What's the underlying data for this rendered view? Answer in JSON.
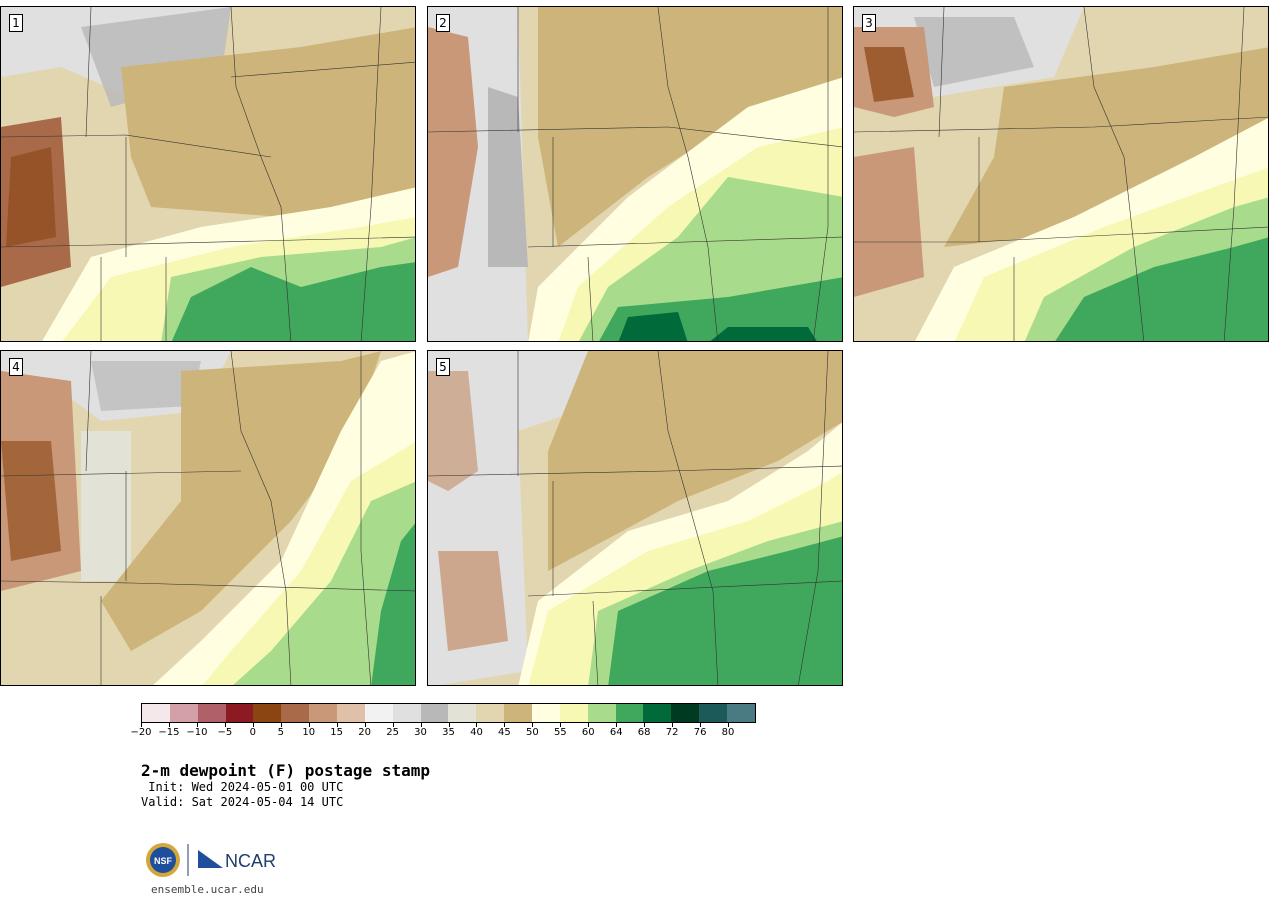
{
  "panels": [
    {
      "label": "1"
    },
    {
      "label": "2"
    },
    {
      "label": "3"
    },
    {
      "label": "4"
    },
    {
      "label": "5"
    }
  ],
  "colorbar": {
    "colors": [
      "#f4e8ea",
      "#d4a0a8",
      "#b06068",
      "#8b1a22",
      "#8b4513",
      "#a86a48",
      "#c89878",
      "#e0c0a8",
      "#f2f2f2",
      "#e0e0e0",
      "#b8b8b8",
      "#e2e2d6",
      "#e2d6b0",
      "#cdb47a",
      "#fffee0",
      "#f6f8b4",
      "#a8dc8c",
      "#40a85c",
      "#006a3a",
      "#003a20",
      "#1c5a5a",
      "#4a7a82"
    ],
    "tick_labels": [
      "−20",
      "−15",
      "−10",
      "−5",
      "0",
      "5",
      "10",
      "15",
      "20",
      "25",
      "30",
      "35",
      "40",
      "45",
      "50",
      "55",
      "60",
      "64",
      "68",
      "72",
      "76",
      "80"
    ]
  },
  "title": "2-m dewpoint (F) postage stamp",
  "init": " Init: Wed 2024-05-01 00 UTC",
  "valid": "Valid: Sat 2024-05-04 14 UTC",
  "logos": {
    "nsf": "NSF",
    "ncar": "NCAR"
  },
  "site": "ensemble.ucar.edu"
}
